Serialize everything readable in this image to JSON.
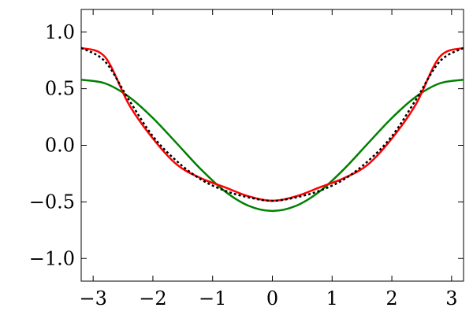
{
  "chart_data": {
    "type": "line",
    "x": [
      -3.2,
      -2.8,
      -2.4,
      -2.0,
      -1.6,
      -1.2,
      -0.8,
      -0.4,
      0,
      0.4,
      0.8,
      1.2,
      1.6,
      2.0,
      2.4,
      2.8,
      3.2
    ],
    "series": [
      {
        "color": "#008000",
        "dash": false,
        "values": [
          0.579,
          0.547,
          0.428,
          0.241,
          0.017,
          -0.21,
          -0.404,
          -0.534,
          -0.58,
          -0.534,
          -0.404,
          -0.21,
          0.017,
          0.241,
          0.428,
          0.547,
          0.579
        ]
      },
      {
        "color": "#ff0000",
        "dash": false,
        "values": [
          0.86,
          0.78,
          0.36,
          0.06,
          -0.17,
          -0.29,
          -0.37,
          -0.45,
          -0.49,
          -0.45,
          -0.37,
          -0.29,
          -0.17,
          0.06,
          0.36,
          0.78,
          0.86
        ]
      },
      {
        "color": "#000000",
        "dash": true,
        "values": [
          0.86,
          0.74,
          0.4,
          0.08,
          -0.14,
          -0.3,
          -0.4,
          -0.46,
          -0.49,
          -0.46,
          -0.4,
          -0.3,
          -0.14,
          0.08,
          0.4,
          0.74,
          0.86
        ]
      }
    ],
    "xlim": [
      -3.2,
      3.2
    ],
    "ylim": [
      -1.2,
      1.2
    ],
    "xticks": [
      {
        "value": -3,
        "label": "−3"
      },
      {
        "value": -2,
        "label": "−2"
      },
      {
        "value": -1,
        "label": "−1"
      },
      0,
      1,
      2,
      3
    ],
    "yticks": [
      {
        "value": -1,
        "label": "−1.0"
      },
      {
        "value": -0.5,
        "label": "−0.5"
      },
      {
        "value": 0,
        "label": "0.0"
      },
      0.5,
      {
        "value": 1,
        "label": "1.0"
      }
    ]
  }
}
